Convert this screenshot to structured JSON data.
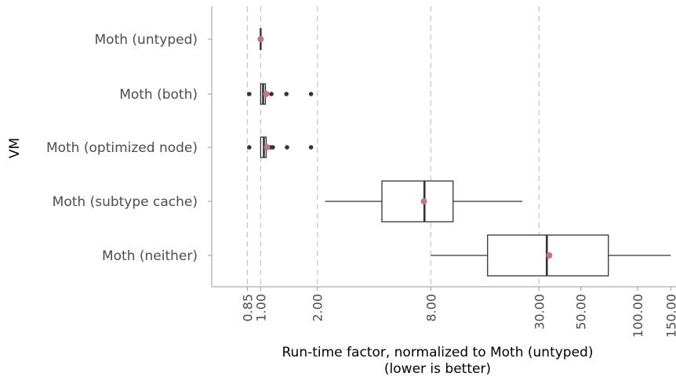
{
  "chart_data": {
    "type": "boxplot",
    "xlabel": "Run-time factor, normalized to Moth (untyped)",
    "xlabel_note": "(lower is better)",
    "ylabel": "VM",
    "x_scale": "log",
    "x_ticks": [
      0.85,
      1.0,
      2.0,
      8.0,
      30.0,
      50.0,
      100.0,
      150.0
    ],
    "x_tick_labels": [
      "0.85",
      "1.00",
      "2.00",
      "8.00",
      "30.00",
      "50.00",
      "100.00",
      "150.00"
    ],
    "reference_lines": [
      0.85,
      1.0,
      2.0,
      8.0,
      30.0
    ],
    "xlim": [
      0.55,
      160
    ],
    "categories": [
      "Moth (untyped)",
      "Moth (both)",
      "Moth (optimized node)",
      "Moth (subtype cache)",
      "Moth (neither)"
    ],
    "boxes": [
      {
        "name": "Moth (untyped)",
        "whisker_low": 1.0,
        "q1": 1.0,
        "median": 1.0,
        "q3": 1.0,
        "whisker_high": 1.0,
        "mean": 1.0,
        "outliers": []
      },
      {
        "name": "Moth (both)",
        "whisker_low": 1.0,
        "q1": 1.0,
        "median": 1.03,
        "q3": 1.06,
        "whisker_high": 1.06,
        "mean": 1.07,
        "outliers": [
          0.87,
          1.14,
          1.37,
          1.85
        ]
      },
      {
        "name": "Moth (optimized node)",
        "whisker_low": 1.0,
        "q1": 1.0,
        "median": 1.04,
        "q3": 1.07,
        "whisker_high": 1.07,
        "mean": 1.08,
        "outliers": [
          0.87,
          1.13,
          1.16,
          1.38,
          1.85
        ]
      },
      {
        "name": "Moth (subtype cache)",
        "whisker_low": 2.2,
        "q1": 4.4,
        "median": 7.4,
        "q3": 10.5,
        "whisker_high": 24.5,
        "mean": 7.35,
        "outliers": []
      },
      {
        "name": "Moth (neither)",
        "whisker_low": 8.0,
        "q1": 16.0,
        "median": 33.0,
        "q3": 70.0,
        "whisker_high": 150.0,
        "mean": 34.0,
        "outliers": []
      }
    ],
    "colors": {
      "mean": "#c7767a",
      "box": "#333333",
      "grid": "#c8c8c8",
      "axis": "#999999"
    }
  }
}
